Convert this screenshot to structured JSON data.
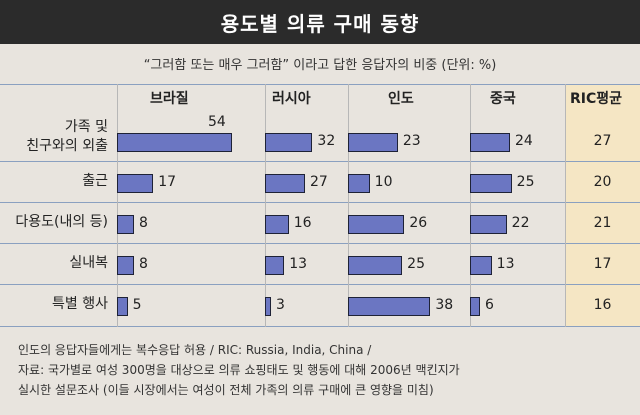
{
  "title": "용도별 의류 구매 동향",
  "subtitle": "“그러함 또는 매우 그러함” 이라고 답한 응답자의 비중 (단위: %)",
  "chart_data": {
    "type": "bar",
    "orientation": "horizontal",
    "unit": "%",
    "categories": [
      "가족 및\n친구와의 외출",
      "출근",
      "다용도(내의 등)",
      "실내복",
      "특별 행사"
    ],
    "series": [
      {
        "name": "브라질",
        "values": [
          54,
          17,
          8,
          8,
          5
        ]
      },
      {
        "name": "러시아",
        "values": [
          32,
          27,
          16,
          13,
          3
        ]
      },
      {
        "name": "인도",
        "values": [
          23,
          10,
          26,
          25,
          38
        ]
      },
      {
        "name": "중국",
        "values": [
          24,
          25,
          22,
          13,
          6
        ]
      }
    ],
    "ric_average": {
      "label": "RIC평균",
      "values": [
        27,
        20,
        21,
        17,
        16
      ]
    }
  },
  "notes": [
    "인도의 응답자들에게는 복수응답 허용 / RIC: Russia, India, China  /",
    "자료: 국가별로 여성 300명을 대상으로 의류 쇼핑태도 및 행동에 대해 2006년 맥킨지가",
    "실시한 설문조사 (이들 시장에서는 여성이 전체 가족의 의류 구매에 큰 영향을 미침)"
  ],
  "colors": {
    "bar": "#6b76c2",
    "ric_column": "#f5e6c4",
    "title_bg": "#2b2b2b"
  }
}
